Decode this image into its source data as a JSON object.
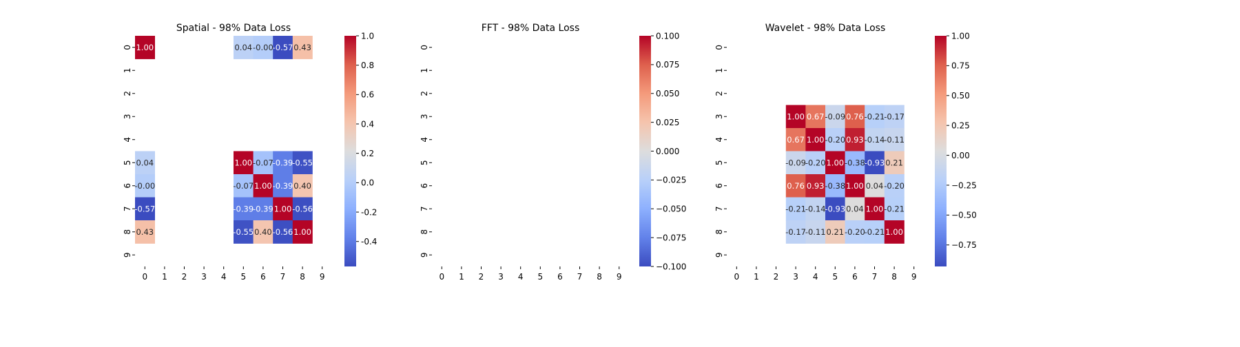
{
  "chart_data": [
    {
      "type": "heatmap",
      "title": "Spatial - 98% Data Loss",
      "x_tick_labels": [
        "0",
        "1",
        "2",
        "3",
        "4",
        "5",
        "6",
        "7",
        "8",
        "9"
      ],
      "y_tick_labels": [
        "0",
        "1",
        "2",
        "3",
        "4",
        "5",
        "6",
        "7",
        "8",
        "9"
      ],
      "colormap": "coolwarm",
      "vmin": -0.57,
      "vmax": 1.0,
      "colorbar_ticks": [
        "-0.4",
        "-0.2",
        "0.0",
        "0.2",
        "0.4",
        "0.6",
        "0.8",
        "1.0"
      ],
      "colorbar_tick_values": [
        -0.4,
        -0.2,
        0.0,
        0.2,
        0.4,
        0.6,
        0.8,
        1.0
      ],
      "annot_labels": [
        [
          "1.00",
          null,
          null,
          null,
          null,
          "0.04",
          "-0.00",
          "-0.57",
          "0.43",
          null
        ],
        [
          null,
          null,
          null,
          null,
          null,
          null,
          null,
          null,
          null,
          null
        ],
        [
          null,
          null,
          null,
          null,
          null,
          null,
          null,
          null,
          null,
          null
        ],
        [
          null,
          null,
          null,
          null,
          null,
          null,
          null,
          null,
          null,
          null
        ],
        [
          null,
          null,
          null,
          null,
          null,
          null,
          null,
          null,
          null,
          null
        ],
        [
          "0.04",
          null,
          null,
          null,
          null,
          "1.00",
          "-0.07",
          "-0.39",
          "-0.55",
          null
        ],
        [
          "-0.00",
          null,
          null,
          null,
          null,
          "-0.07",
          "1.00",
          "-0.39",
          "0.40",
          null
        ],
        [
          "-0.57",
          null,
          null,
          null,
          null,
          "-0.39",
          "-0.39",
          "1.00",
          "-0.56",
          null
        ],
        [
          "0.43",
          null,
          null,
          null,
          null,
          "-0.55",
          "0.40",
          "-0.56",
          "1.00",
          null
        ],
        [
          null,
          null,
          null,
          null,
          null,
          null,
          null,
          null,
          null,
          null
        ]
      ]
    },
    {
      "type": "heatmap",
      "title": "FFT - 98% Data Loss",
      "x_tick_labels": [
        "0",
        "1",
        "2",
        "3",
        "4",
        "5",
        "6",
        "7",
        "8",
        "9"
      ],
      "y_tick_labels": [
        "0",
        "1",
        "2",
        "3",
        "4",
        "5",
        "6",
        "7",
        "8",
        "9"
      ],
      "colormap": "coolwarm",
      "vmin": -0.1,
      "vmax": 0.1,
      "colorbar_ticks": [
        "−0.100",
        "−0.075",
        "−0.050",
        "−0.025",
        "0.000",
        "0.025",
        "0.050",
        "0.075",
        "0.100"
      ],
      "colorbar_tick_values": [
        -0.1,
        -0.075,
        -0.05,
        -0.025,
        0.0,
        0.025,
        0.05,
        0.075,
        0.1
      ],
      "annot_labels": [
        [
          null,
          null,
          null,
          null,
          null,
          null,
          null,
          null,
          null,
          null
        ],
        [
          null,
          null,
          null,
          null,
          null,
          null,
          null,
          null,
          null,
          null
        ],
        [
          null,
          null,
          null,
          null,
          null,
          null,
          null,
          null,
          null,
          null
        ],
        [
          null,
          null,
          null,
          null,
          null,
          null,
          null,
          null,
          null,
          null
        ],
        [
          null,
          null,
          null,
          null,
          null,
          null,
          null,
          null,
          null,
          null
        ],
        [
          null,
          null,
          null,
          null,
          null,
          null,
          null,
          null,
          null,
          null
        ],
        [
          null,
          null,
          null,
          null,
          null,
          null,
          null,
          null,
          null,
          null
        ],
        [
          null,
          null,
          null,
          null,
          null,
          null,
          null,
          null,
          null,
          null
        ],
        [
          null,
          null,
          null,
          null,
          null,
          null,
          null,
          null,
          null,
          null
        ],
        [
          null,
          null,
          null,
          null,
          null,
          null,
          null,
          null,
          null,
          null
        ]
      ]
    },
    {
      "type": "heatmap",
      "title": "Wavelet - 98% Data Loss",
      "x_tick_labels": [
        "0",
        "1",
        "2",
        "3",
        "4",
        "5",
        "6",
        "7",
        "8",
        "9"
      ],
      "y_tick_labels": [
        "0",
        "1",
        "2",
        "3",
        "4",
        "5",
        "6",
        "7",
        "8",
        "9"
      ],
      "colormap": "coolwarm",
      "vmin": -0.93,
      "vmax": 1.0,
      "colorbar_ticks": [
        "−0.75",
        "−0.50",
        "−0.25",
        "0.00",
        "0.25",
        "0.50",
        "0.75",
        "1.00"
      ],
      "colorbar_tick_values": [
        -0.75,
        -0.5,
        -0.25,
        0.0,
        0.25,
        0.5,
        0.75,
        1.0
      ],
      "annot_labels": [
        [
          null,
          null,
          null,
          null,
          null,
          null,
          null,
          null,
          null,
          null
        ],
        [
          null,
          null,
          null,
          null,
          null,
          null,
          null,
          null,
          null,
          null
        ],
        [
          null,
          null,
          null,
          null,
          null,
          null,
          null,
          null,
          null,
          null
        ],
        [
          null,
          null,
          null,
          "1.00",
          "0.67",
          "-0.09",
          "0.76",
          "-0.21",
          "-0.17",
          null
        ],
        [
          null,
          null,
          null,
          "0.67",
          "1.00",
          "-0.20",
          "0.93",
          "-0.14",
          "-0.11",
          null
        ],
        [
          null,
          null,
          null,
          "-0.09",
          "-0.20",
          "1.00",
          "-0.38",
          "-0.93",
          "0.21",
          null
        ],
        [
          null,
          null,
          null,
          "0.76",
          "0.93",
          "-0.38",
          "1.00",
          "0.04",
          "-0.20",
          null
        ],
        [
          null,
          null,
          null,
          "-0.21",
          "-0.14",
          "-0.93",
          "0.04",
          "1.00",
          "-0.21",
          null
        ],
        [
          null,
          null,
          null,
          "-0.17",
          "-0.11",
          "0.21",
          "-0.20",
          "-0.21",
          "1.00",
          null
        ],
        [
          null,
          null,
          null,
          null,
          null,
          null,
          null,
          null,
          null,
          null
        ]
      ]
    }
  ]
}
